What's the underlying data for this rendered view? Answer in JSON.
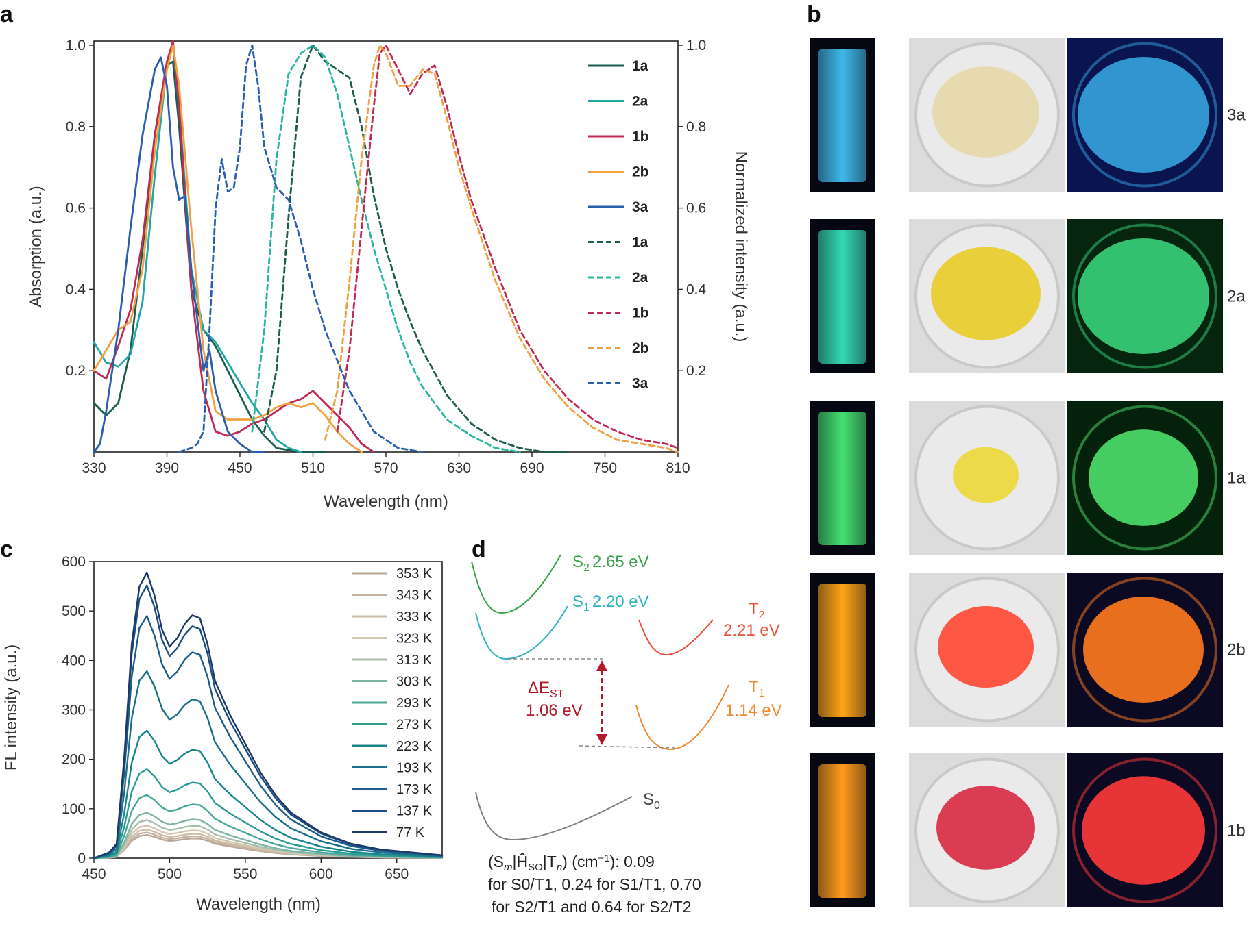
{
  "panels": {
    "a": "a",
    "b": "b",
    "c": "c",
    "d": "d"
  },
  "chart_data": [
    {
      "panel": "a",
      "type": "line",
      "xlabel": "Wavelength (nm)",
      "ylabel": "Absorption (a.u.)",
      "ylabel_right": "Normalized intensity (a.u.)",
      "xlim": [
        330,
        810
      ],
      "ylim": [
        0,
        1.0
      ],
      "xticks": [
        330,
        390,
        450,
        510,
        570,
        630,
        690,
        750,
        810
      ],
      "xtick_labels": [
        "330",
        "390",
        "450",
        "510",
        "570",
        "630",
        "690",
        "750",
        "810"
      ],
      "yticks": [
        0.2,
        0.4,
        0.6,
        0.8,
        1.0
      ],
      "ytick_labels": [
        "0.2",
        "0.4",
        "0.6",
        "0.8",
        "1.0"
      ],
      "ytick_labels_right": [
        "0.2",
        "0.4",
        "0.6",
        "0.8",
        "1.0"
      ],
      "legend_position": "right",
      "series": [
        {
          "name": "1a",
          "style": "solid",
          "color": "#1b5e50",
          "x": [
            330,
            340,
            350,
            360,
            370,
            380,
            390,
            395,
            400,
            410,
            420,
            430,
            440,
            450,
            460,
            470,
            480,
            500,
            520
          ],
          "y": [
            0.12,
            0.09,
            0.12,
            0.25,
            0.5,
            0.78,
            0.95,
            0.96,
            0.8,
            0.4,
            0.3,
            0.26,
            0.2,
            0.14,
            0.08,
            0.04,
            0.01,
            0.0,
            0.0
          ]
        },
        {
          "name": "2a",
          "style": "solid",
          "color": "#1fa6a6",
          "x": [
            330,
            340,
            350,
            360,
            370,
            380,
            390,
            395,
            400,
            410,
            420,
            430,
            440,
            450,
            460,
            470,
            480,
            490,
            500
          ],
          "y": [
            0.27,
            0.22,
            0.21,
            0.24,
            0.37,
            0.68,
            0.95,
            1.0,
            0.85,
            0.45,
            0.3,
            0.27,
            0.22,
            0.17,
            0.12,
            0.08,
            0.03,
            0.01,
            0.0
          ]
        },
        {
          "name": "1b",
          "style": "solid",
          "color": "#c02a55",
          "x": [
            330,
            340,
            350,
            360,
            370,
            380,
            390,
            395,
            400,
            410,
            420,
            430,
            440,
            450,
            460,
            470,
            480,
            490,
            500,
            510,
            520,
            530,
            540,
            550,
            560
          ],
          "y": [
            0.2,
            0.18,
            0.26,
            0.35,
            0.52,
            0.78,
            0.96,
            1.01,
            0.85,
            0.4,
            0.15,
            0.05,
            0.04,
            0.05,
            0.07,
            0.08,
            0.1,
            0.12,
            0.13,
            0.15,
            0.12,
            0.09,
            0.06,
            0.02,
            0.0
          ]
        },
        {
          "name": "2b",
          "style": "solid",
          "color": "#f0a040",
          "x": [
            330,
            340,
            350,
            360,
            370,
            380,
            390,
            395,
            400,
            410,
            420,
            430,
            440,
            450,
            460,
            470,
            480,
            490,
            500,
            510,
            520,
            530,
            540,
            550
          ],
          "y": [
            0.2,
            0.25,
            0.3,
            0.32,
            0.45,
            0.74,
            0.94,
            1.0,
            0.9,
            0.55,
            0.25,
            0.1,
            0.08,
            0.08,
            0.08,
            0.09,
            0.11,
            0.12,
            0.11,
            0.12,
            0.09,
            0.05,
            0.02,
            0.0
          ]
        },
        {
          "name": "3a",
          "style": "solid",
          "color": "#2b5fae",
          "x": [
            330,
            335,
            340,
            350,
            360,
            370,
            380,
            385,
            390,
            395,
            400,
            405,
            410,
            420,
            425,
            430,
            440,
            450,
            460,
            470
          ],
          "y": [
            0.0,
            0.02,
            0.1,
            0.3,
            0.55,
            0.78,
            0.94,
            0.97,
            0.9,
            0.7,
            0.62,
            0.63,
            0.45,
            0.2,
            0.25,
            0.15,
            0.05,
            0.02,
            0.0,
            0.0
          ]
        },
        {
          "name": "1a",
          "style": "dashed",
          "color": "#1b5e50",
          "x": [
            470,
            480,
            490,
            500,
            510,
            520,
            530,
            540,
            550,
            560,
            570,
            580,
            590,
            600,
            620,
            640,
            660,
            680,
            700,
            720
          ],
          "y": [
            0.05,
            0.2,
            0.58,
            0.92,
            1.0,
            0.96,
            0.94,
            0.92,
            0.8,
            0.63,
            0.5,
            0.4,
            0.32,
            0.25,
            0.14,
            0.07,
            0.03,
            0.01,
            0.0,
            0.0
          ]
        },
        {
          "name": "2a",
          "style": "dashed",
          "color": "#2ab5a0",
          "x": [
            460,
            470,
            480,
            490,
            500,
            510,
            520,
            530,
            540,
            550,
            560,
            570,
            580,
            590,
            600,
            620,
            640,
            660,
            680
          ],
          "y": [
            0.05,
            0.3,
            0.72,
            0.93,
            0.98,
            1.0,
            0.97,
            0.88,
            0.75,
            0.62,
            0.5,
            0.4,
            0.3,
            0.22,
            0.16,
            0.08,
            0.04,
            0.01,
            0.0
          ]
        },
        {
          "name": "1b",
          "style": "dashed",
          "color": "#c02a55",
          "x": [
            530,
            540,
            550,
            560,
            565,
            570,
            580,
            590,
            600,
            610,
            620,
            630,
            640,
            660,
            680,
            700,
            720,
            740,
            760,
            780,
            800,
            810
          ],
          "y": [
            0.05,
            0.25,
            0.55,
            0.85,
            0.98,
            1.0,
            0.94,
            0.88,
            0.93,
            0.95,
            0.85,
            0.73,
            0.62,
            0.45,
            0.3,
            0.2,
            0.13,
            0.08,
            0.05,
            0.03,
            0.02,
            0.01
          ]
        },
        {
          "name": "2b",
          "style": "dashed",
          "color": "#f0a040",
          "x": [
            520,
            530,
            540,
            550,
            560,
            565,
            570,
            580,
            590,
            600,
            610,
            620,
            630,
            640,
            660,
            680,
            700,
            720,
            740,
            760,
            780,
            800,
            810
          ],
          "y": [
            0.03,
            0.15,
            0.42,
            0.72,
            0.95,
            1.0,
            0.98,
            0.9,
            0.9,
            0.94,
            0.93,
            0.82,
            0.7,
            0.6,
            0.42,
            0.28,
            0.18,
            0.11,
            0.06,
            0.03,
            0.02,
            0.01,
            0.0
          ]
        },
        {
          "name": "3a",
          "style": "dashed",
          "color": "#2b5fae",
          "x": [
            400,
            410,
            415,
            420,
            425,
            430,
            435,
            440,
            445,
            450,
            455,
            460,
            465,
            470,
            480,
            490,
            500,
            510,
            520,
            540,
            560,
            580,
            600
          ],
          "y": [
            0.0,
            0.01,
            0.02,
            0.05,
            0.3,
            0.6,
            0.72,
            0.64,
            0.65,
            0.75,
            0.95,
            1.0,
            0.9,
            0.75,
            0.65,
            0.62,
            0.52,
            0.4,
            0.3,
            0.15,
            0.05,
            0.01,
            0.0
          ]
        }
      ]
    },
    {
      "panel": "c",
      "type": "line",
      "xlabel": "Wavelength (nm)",
      "ylabel": "FL intensity (a.u.)",
      "xlim": [
        450,
        680
      ],
      "ylim": [
        0,
        600
      ],
      "xticks": [
        450,
        500,
        550,
        600,
        650
      ],
      "xtick_labels": [
        "450",
        "500",
        "550",
        "600",
        "650"
      ],
      "yticks": [
        0,
        100,
        200,
        300,
        400,
        500,
        600
      ],
      "ytick_labels": [
        "0",
        "100",
        "200",
        "300",
        "400",
        "500",
        "600"
      ],
      "legend_position": "top-right",
      "shape_x": [
        450,
        460,
        465,
        470,
        475,
        480,
        485,
        490,
        495,
        500,
        505,
        510,
        515,
        520,
        525,
        530,
        540,
        550,
        560,
        570,
        580,
        600,
        620,
        640,
        660,
        680
      ],
      "shape_y": [
        0.0,
        0.02,
        0.05,
        0.35,
        0.75,
        0.95,
        1.0,
        0.92,
        0.8,
        0.74,
        0.77,
        0.82,
        0.85,
        0.84,
        0.75,
        0.62,
        0.5,
        0.4,
        0.3,
        0.22,
        0.16,
        0.09,
        0.05,
        0.03,
        0.02,
        0.01
      ],
      "series": [
        {
          "name": "353 K",
          "peak": 47,
          "color": "#b9a898"
        },
        {
          "name": "343 K",
          "peak": 52,
          "color": "#c5b3a1"
        },
        {
          "name": "333 K",
          "peak": 58,
          "color": "#cdbca6"
        },
        {
          "name": "323 K",
          "peak": 66,
          "color": "#d3c8ad"
        },
        {
          "name": "313 K",
          "peak": 77,
          "color": "#a8bfae"
        },
        {
          "name": "303 K",
          "peak": 92,
          "color": "#7fb3a6"
        },
        {
          "name": "293 K",
          "peak": 128,
          "color": "#4aa69b"
        },
        {
          "name": "273 K",
          "peak": 180,
          "color": "#2a9c94"
        },
        {
          "name": "223 K",
          "peak": 258,
          "color": "#18858a"
        },
        {
          "name": "193 K",
          "peak": 378,
          "color": "#1a6f8a"
        },
        {
          "name": "173 K",
          "peak": 490,
          "color": "#1e5c8a"
        },
        {
          "name": "137 K",
          "peak": 552,
          "color": "#1d4d7e"
        },
        {
          "name": "77 K",
          "peak": 578,
          "color": "#1b3a6a"
        }
      ]
    }
  ],
  "panel_b": {
    "rows": [
      {
        "label": "3a",
        "vial": "#3fb8ea",
        "powder": "#e6d8a8",
        "glow": "#35a3de",
        "bg_dark": "#0a1550"
      },
      {
        "label": "2a",
        "vial": "#35d9b4",
        "powder": "#e8cd2a",
        "glow": "#39d27a",
        "bg_dark": "#05250f"
      },
      {
        "label": "1a",
        "vial": "#45e070",
        "powder": "#ecd83a",
        "glow": "#4ee06c",
        "bg_dark": "#03210b"
      },
      {
        "label": "2b",
        "vial": "#ffa417",
        "powder": "#ff4a35",
        "glow": "#ff7a1e",
        "bg_dark": "#0c0a22"
      },
      {
        "label": "1b",
        "vial": "#ff9a1c",
        "powder": "#d82d45",
        "glow": "#ff3838",
        "bg_dark": "#0c0a22"
      }
    ]
  },
  "panel_d": {
    "s2_sym": "S",
    "s2_sub": "2",
    "s2_energy": "2.65 eV",
    "s1_sym": "S",
    "s1_sub": "1",
    "s1_energy": "2.20 eV",
    "t2_sym": "T",
    "t2_sub": "2",
    "t2_energy": "2.21 eV",
    "t1_sym": "T",
    "t1_sub": "1",
    "t1_energy": "1.14 eV",
    "s0_sym": "S",
    "s0_sub": "0",
    "dest_delta": "ΔE",
    "dest_sub": "ST",
    "dest_value": "1.06 eV",
    "note_line1_a": "(S",
    "note_line1_m": "m",
    "note_line1_b": "|Ĥ",
    "note_line1_so": "SO",
    "note_line1_c": "|T",
    "note_line1_n": "n",
    "note_line1_d": ") (cm",
    "note_line1_exp": "−1",
    "note_line1_e": "): 0.09",
    "note_line2": "for S0/T1, 0.24 for S1/T1, 0.70",
    "note_line3": "for S2/T1 and 0.64 for S2/T2",
    "colors": {
      "s2": "#3aa34a",
      "s1": "#2fb3c0",
      "t2": "#e8503a",
      "t1": "#f08a30",
      "s0": "#808080",
      "dest": "#b01a2a"
    }
  }
}
